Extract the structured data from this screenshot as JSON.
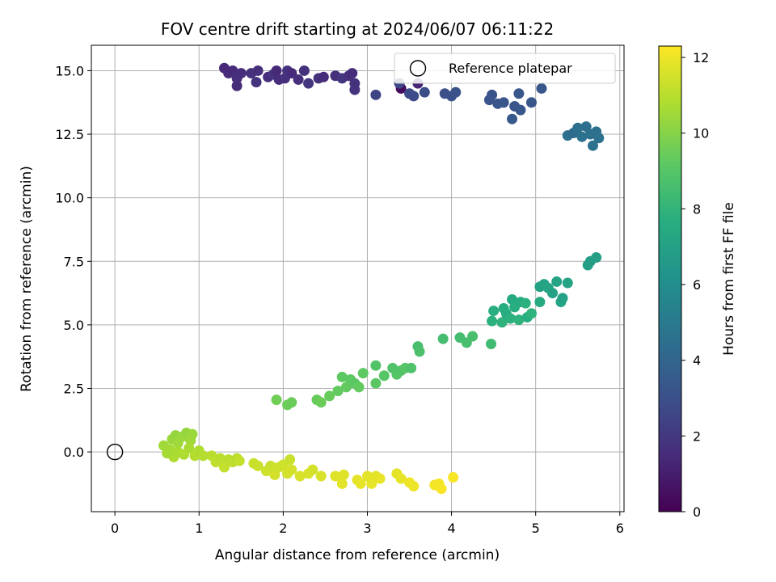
{
  "chart_data": {
    "type": "scatter",
    "title": "FOV centre drift starting at 2024/06/07 06:11:22",
    "xlabel": "Angular distance from reference (arcmin)",
    "ylabel": "Rotation from reference (arcmin)",
    "colorbar_label": "Hours from first FF file",
    "colormap": "viridis",
    "xlim": [
      -0.28,
      6.05
    ],
    "ylim": [
      -2.35,
      16.0
    ],
    "clim": [
      0,
      12.3
    ],
    "x_ticks": [
      0,
      1,
      2,
      3,
      4,
      5,
      6
    ],
    "x_tick_labels": [
      "0",
      "1",
      "2",
      "3",
      "4",
      "5",
      "6"
    ],
    "y_ticks": [
      0.0,
      2.5,
      5.0,
      7.5,
      10.0,
      12.5,
      15.0
    ],
    "y_tick_labels": [
      "0.0",
      "2.5",
      "5.0",
      "7.5",
      "10.0",
      "12.5",
      "15.0"
    ],
    "colorbar_ticks": [
      0,
      2,
      4,
      6,
      8,
      10,
      12
    ],
    "colorbar_tick_labels": [
      "0",
      "2",
      "4",
      "6",
      "8",
      "10",
      "12"
    ],
    "grid": true,
    "legend_position": "top-right",
    "legend": [
      {
        "name": "Reference platepar",
        "marker": "hollow-circle"
      }
    ],
    "reference_point": {
      "x": 0,
      "y": 0
    },
    "points": [
      {
        "x": 1.3,
        "y": 15.1,
        "c": 1.4
      },
      {
        "x": 1.35,
        "y": 14.9,
        "c": 1.5
      },
      {
        "x": 1.4,
        "y": 15.0,
        "c": 1.45
      },
      {
        "x": 1.45,
        "y": 14.7,
        "c": 1.6
      },
      {
        "x": 1.5,
        "y": 14.9,
        "c": 1.55
      },
      {
        "x": 1.45,
        "y": 14.4,
        "c": 1.5
      },
      {
        "x": 1.62,
        "y": 14.9,
        "c": 1.7
      },
      {
        "x": 1.7,
        "y": 15.0,
        "c": 1.65
      },
      {
        "x": 1.68,
        "y": 14.55,
        "c": 1.8
      },
      {
        "x": 1.82,
        "y": 14.75,
        "c": 1.6
      },
      {
        "x": 1.88,
        "y": 14.85,
        "c": 1.8
      },
      {
        "x": 1.92,
        "y": 15.0,
        "c": 1.4
      },
      {
        "x": 1.95,
        "y": 14.65,
        "c": 1.55
      },
      {
        "x": 2.02,
        "y": 14.7,
        "c": 1.7
      },
      {
        "x": 2.05,
        "y": 15.0,
        "c": 1.8
      },
      {
        "x": 2.1,
        "y": 14.9,
        "c": 1.45
      },
      {
        "x": 2.18,
        "y": 14.65,
        "c": 1.6
      },
      {
        "x": 2.25,
        "y": 15.0,
        "c": 1.75
      },
      {
        "x": 2.3,
        "y": 14.5,
        "c": 1.9
      },
      {
        "x": 2.42,
        "y": 14.7,
        "c": 1.7
      },
      {
        "x": 2.48,
        "y": 14.75,
        "c": 1.5
      },
      {
        "x": 2.62,
        "y": 14.8,
        "c": 1.65
      },
      {
        "x": 2.7,
        "y": 14.7,
        "c": 1.9
      },
      {
        "x": 2.78,
        "y": 14.8,
        "c": 1.6
      },
      {
        "x": 2.82,
        "y": 14.9,
        "c": 1.5
      },
      {
        "x": 2.85,
        "y": 14.5,
        "c": 1.75
      },
      {
        "x": 2.85,
        "y": 14.25,
        "c": 1.8
      },
      {
        "x": 3.1,
        "y": 14.05,
        "c": 2.5
      },
      {
        "x": 3.4,
        "y": 14.3,
        "c": 0.4
      },
      {
        "x": 3.38,
        "y": 14.5,
        "c": 2.6
      },
      {
        "x": 3.5,
        "y": 14.1,
        "c": 2.7
      },
      {
        "x": 3.55,
        "y": 14.0,
        "c": 2.8
      },
      {
        "x": 3.6,
        "y": 14.5,
        "c": 1.3
      },
      {
        "x": 3.68,
        "y": 14.15,
        "c": 2.9
      },
      {
        "x": 3.92,
        "y": 14.1,
        "c": 3.0
      },
      {
        "x": 4.0,
        "y": 14.0,
        "c": 3.05
      },
      {
        "x": 4.05,
        "y": 14.15,
        "c": 3.1
      },
      {
        "x": 4.48,
        "y": 14.05,
        "c": 3.1
      },
      {
        "x": 4.45,
        "y": 13.85,
        "c": 3.2
      },
      {
        "x": 4.55,
        "y": 13.7,
        "c": 3.3
      },
      {
        "x": 4.62,
        "y": 13.75,
        "c": 3.3
      },
      {
        "x": 4.72,
        "y": 13.1,
        "c": 3.4
      },
      {
        "x": 4.75,
        "y": 13.6,
        "c": 3.2
      },
      {
        "x": 4.82,
        "y": 13.45,
        "c": 3.35
      },
      {
        "x": 4.8,
        "y": 14.1,
        "c": 3.3
      },
      {
        "x": 4.95,
        "y": 13.75,
        "c": 3.25
      },
      {
        "x": 5.07,
        "y": 14.3,
        "c": 3.3
      },
      {
        "x": 5.38,
        "y": 12.45,
        "c": 4.4
      },
      {
        "x": 5.45,
        "y": 12.55,
        "c": 4.3
      },
      {
        "x": 5.5,
        "y": 12.75,
        "c": 4.5
      },
      {
        "x": 5.55,
        "y": 12.4,
        "c": 4.6
      },
      {
        "x": 5.6,
        "y": 12.8,
        "c": 4.4
      },
      {
        "x": 5.65,
        "y": 12.5,
        "c": 4.5
      },
      {
        "x": 5.68,
        "y": 12.05,
        "c": 4.6
      },
      {
        "x": 5.72,
        "y": 12.6,
        "c": 4.5
      },
      {
        "x": 5.75,
        "y": 12.35,
        "c": 4.55
      },
      {
        "x": 5.62,
        "y": 7.35,
        "c": 6.9
      },
      {
        "x": 5.65,
        "y": 7.5,
        "c": 6.8
      },
      {
        "x": 5.72,
        "y": 7.65,
        "c": 6.9
      },
      {
        "x": 5.05,
        "y": 6.5,
        "c": 7.0
      },
      {
        "x": 5.1,
        "y": 6.6,
        "c": 7.1
      },
      {
        "x": 5.15,
        "y": 6.45,
        "c": 7.2
      },
      {
        "x": 5.2,
        "y": 6.25,
        "c": 7.0
      },
      {
        "x": 5.25,
        "y": 6.7,
        "c": 7.1
      },
      {
        "x": 5.3,
        "y": 5.9,
        "c": 7.2
      },
      {
        "x": 5.32,
        "y": 6.05,
        "c": 7.0
      },
      {
        "x": 5.38,
        "y": 6.65,
        "c": 7.1
      },
      {
        "x": 5.05,
        "y": 5.9,
        "c": 7.5
      },
      {
        "x": 4.48,
        "y": 5.15,
        "c": 7.8
      },
      {
        "x": 4.5,
        "y": 5.55,
        "c": 7.7
      },
      {
        "x": 4.6,
        "y": 5.1,
        "c": 7.9
      },
      {
        "x": 4.65,
        "y": 5.45,
        "c": 7.6
      },
      {
        "x": 4.7,
        "y": 5.25,
        "c": 7.8
      },
      {
        "x": 4.72,
        "y": 6.0,
        "c": 7.5
      },
      {
        "x": 4.75,
        "y": 5.7,
        "c": 7.7
      },
      {
        "x": 4.8,
        "y": 5.2,
        "c": 7.9
      },
      {
        "x": 4.82,
        "y": 5.9,
        "c": 7.6
      },
      {
        "x": 4.88,
        "y": 5.85,
        "c": 7.8
      },
      {
        "x": 4.9,
        "y": 5.3,
        "c": 7.7
      },
      {
        "x": 4.95,
        "y": 5.45,
        "c": 7.9
      },
      {
        "x": 4.62,
        "y": 5.65,
        "c": 7.6
      },
      {
        "x": 4.47,
        "y": 4.25,
        "c": 8.4
      },
      {
        "x": 3.6,
        "y": 4.15,
        "c": 8.6
      },
      {
        "x": 3.62,
        "y": 3.95,
        "c": 8.7
      },
      {
        "x": 3.9,
        "y": 4.45,
        "c": 8.5
      },
      {
        "x": 4.1,
        "y": 4.5,
        "c": 8.5
      },
      {
        "x": 4.18,
        "y": 4.3,
        "c": 8.6
      },
      {
        "x": 4.25,
        "y": 4.55,
        "c": 8.6
      },
      {
        "x": 3.1,
        "y": 3.4,
        "c": 8.9
      },
      {
        "x": 3.2,
        "y": 3.0,
        "c": 9.0
      },
      {
        "x": 3.3,
        "y": 3.3,
        "c": 8.8
      },
      {
        "x": 3.35,
        "y": 3.05,
        "c": 9.0
      },
      {
        "x": 3.4,
        "y": 3.2,
        "c": 8.9
      },
      {
        "x": 3.45,
        "y": 3.3,
        "c": 9.0
      },
      {
        "x": 3.52,
        "y": 3.3,
        "c": 8.8
      },
      {
        "x": 3.1,
        "y": 2.7,
        "c": 9.1
      },
      {
        "x": 2.7,
        "y": 2.95,
        "c": 9.2
      },
      {
        "x": 2.75,
        "y": 2.55,
        "c": 9.3
      },
      {
        "x": 2.8,
        "y": 2.85,
        "c": 9.2
      },
      {
        "x": 2.85,
        "y": 2.7,
        "c": 9.1
      },
      {
        "x": 2.9,
        "y": 2.55,
        "c": 9.3
      },
      {
        "x": 2.95,
        "y": 3.1,
        "c": 9.2
      },
      {
        "x": 2.65,
        "y": 2.4,
        "c": 9.3
      },
      {
        "x": 2.55,
        "y": 2.2,
        "c": 9.4
      },
      {
        "x": 2.4,
        "y": 2.05,
        "c": 9.4
      },
      {
        "x": 2.45,
        "y": 1.95,
        "c": 9.5
      },
      {
        "x": 2.1,
        "y": 1.95,
        "c": 9.5
      },
      {
        "x": 2.05,
        "y": 1.85,
        "c": 9.5
      },
      {
        "x": 1.92,
        "y": 2.05,
        "c": 9.6
      },
      {
        "x": 0.58,
        "y": 0.25,
        "c": 10.5
      },
      {
        "x": 0.65,
        "y": 0.1,
        "c": 10.6
      },
      {
        "x": 0.68,
        "y": 0.5,
        "c": 10.4
      },
      {
        "x": 0.72,
        "y": 0.65,
        "c": 10.3
      },
      {
        "x": 0.75,
        "y": 0.35,
        "c": 10.5
      },
      {
        "x": 0.8,
        "y": 0.6,
        "c": 10.4
      },
      {
        "x": 0.85,
        "y": 0.75,
        "c": 10.3
      },
      {
        "x": 0.9,
        "y": 0.45,
        "c": 10.5
      },
      {
        "x": 0.92,
        "y": 0.7,
        "c": 10.4
      },
      {
        "x": 0.7,
        "y": -0.2,
        "c": 10.8
      },
      {
        "x": 0.75,
        "y": 0.0,
        "c": 10.7
      },
      {
        "x": 0.82,
        "y": -0.1,
        "c": 10.8
      },
      {
        "x": 0.88,
        "y": 0.15,
        "c": 10.7
      },
      {
        "x": 0.95,
        "y": -0.15,
        "c": 10.9
      },
      {
        "x": 1.0,
        "y": 0.05,
        "c": 10.8
      },
      {
        "x": 0.62,
        "y": -0.05,
        "c": 10.6
      },
      {
        "x": 1.05,
        "y": -0.15,
        "c": 10.9
      },
      {
        "x": 1.15,
        "y": -0.15,
        "c": 11.0
      },
      {
        "x": 1.2,
        "y": -0.4,
        "c": 11.1
      },
      {
        "x": 1.25,
        "y": -0.25,
        "c": 11.0
      },
      {
        "x": 1.3,
        "y": -0.5,
        "c": 11.1
      },
      {
        "x": 1.35,
        "y": -0.3,
        "c": 11.0
      },
      {
        "x": 1.4,
        "y": -0.4,
        "c": 11.1
      },
      {
        "x": 1.45,
        "y": -0.25,
        "c": 11.0
      },
      {
        "x": 1.48,
        "y": -0.35,
        "c": 11.2
      },
      {
        "x": 1.3,
        "y": -0.6,
        "c": 11.2
      },
      {
        "x": 1.65,
        "y": -0.45,
        "c": 11.3
      },
      {
        "x": 1.7,
        "y": -0.55,
        "c": 11.3
      },
      {
        "x": 1.8,
        "y": -0.75,
        "c": 11.4
      },
      {
        "x": 1.85,
        "y": -0.55,
        "c": 11.3
      },
      {
        "x": 1.9,
        "y": -0.9,
        "c": 11.5
      },
      {
        "x": 1.95,
        "y": -0.6,
        "c": 11.4
      },
      {
        "x": 2.0,
        "y": -0.5,
        "c": 11.4
      },
      {
        "x": 2.05,
        "y": -0.85,
        "c": 11.5
      },
      {
        "x": 2.08,
        "y": -0.3,
        "c": 11.3
      },
      {
        "x": 2.1,
        "y": -0.7,
        "c": 11.5
      },
      {
        "x": 2.2,
        "y": -0.95,
        "c": 11.6
      },
      {
        "x": 2.3,
        "y": -0.85,
        "c": 11.6
      },
      {
        "x": 2.35,
        "y": -0.7,
        "c": 11.5
      },
      {
        "x": 2.45,
        "y": -0.95,
        "c": 11.6
      },
      {
        "x": 2.62,
        "y": -0.95,
        "c": 11.7
      },
      {
        "x": 2.7,
        "y": -1.25,
        "c": 11.8
      },
      {
        "x": 2.72,
        "y": -0.9,
        "c": 11.7
      },
      {
        "x": 2.88,
        "y": -1.1,
        "c": 11.8
      },
      {
        "x": 2.92,
        "y": -1.25,
        "c": 11.9
      },
      {
        "x": 3.0,
        "y": -0.95,
        "c": 11.8
      },
      {
        "x": 3.05,
        "y": -1.25,
        "c": 11.9
      },
      {
        "x": 3.1,
        "y": -0.95,
        "c": 11.8
      },
      {
        "x": 3.15,
        "y": -1.05,
        "c": 11.9
      },
      {
        "x": 3.35,
        "y": -0.85,
        "c": 11.8
      },
      {
        "x": 3.4,
        "y": -1.05,
        "c": 11.9
      },
      {
        "x": 3.5,
        "y": -1.2,
        "c": 12.0
      },
      {
        "x": 3.55,
        "y": -1.35,
        "c": 12.0
      },
      {
        "x": 3.8,
        "y": -1.3,
        "c": 12.1
      },
      {
        "x": 3.88,
        "y": -1.45,
        "c": 12.2
      },
      {
        "x": 3.85,
        "y": -1.25,
        "c": 12.1
      },
      {
        "x": 4.02,
        "y": -1.0,
        "c": 12.2
      }
    ]
  }
}
